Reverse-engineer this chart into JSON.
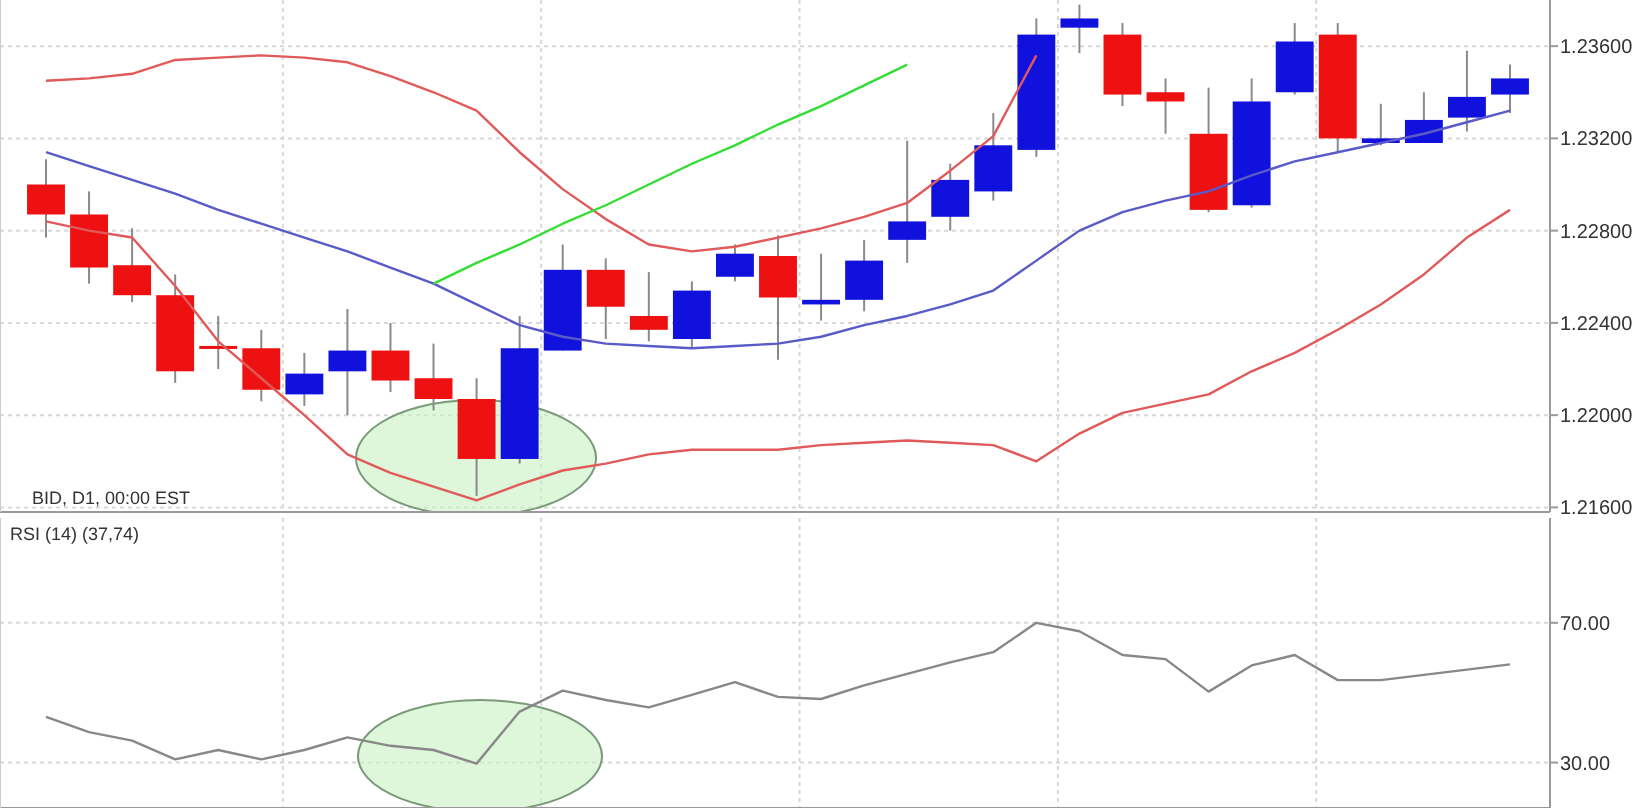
{
  "chart_data": [
    {
      "type": "candlestick",
      "annotations": [
        "BID, D1, 00:00 EST"
      ],
      "categories": [
        null,
        null,
        null,
        null,
        null,
        null,
        null,
        null,
        null,
        null,
        null,
        null,
        null,
        null,
        null,
        null,
        null,
        null,
        null,
        null,
        null,
        null,
        null,
        null,
        null,
        null,
        null,
        null,
        null,
        null,
        null,
        null,
        null,
        null,
        null
      ],
      "ohlc": [
        [
          1.23,
          1.2311,
          1.2277,
          1.2287
        ],
        [
          1.2287,
          1.2297,
          1.2257,
          1.2264
        ],
        [
          1.2265,
          1.2281,
          1.2249,
          1.2252
        ],
        [
          1.2252,
          1.2261,
          1.2214,
          1.2219
        ],
        [
          1.223,
          1.2243,
          1.222,
          1.2229
        ],
        [
          1.2229,
          1.2237,
          1.2206,
          1.2211
        ],
        [
          1.2209,
          1.2227,
          1.2204,
          1.2218
        ],
        [
          1.2219,
          1.2246,
          1.22,
          1.2228
        ],
        [
          1.2228,
          1.224,
          1.221,
          1.2215
        ],
        [
          1.2216,
          1.2231,
          1.2202,
          1.2207
        ],
        [
          1.2207,
          1.2216,
          1.2165,
          1.2181
        ],
        [
          1.2181,
          1.2243,
          1.2179,
          1.2229
        ],
        [
          1.2228,
          1.2274,
          1.2228,
          1.2263
        ],
        [
          1.2263,
          1.2268,
          1.2233,
          1.2247
        ],
        [
          1.2243,
          1.2262,
          1.2232,
          1.2237
        ],
        [
          1.2233,
          1.2258,
          1.2229,
          1.2254
        ],
        [
          1.226,
          1.2274,
          1.2258,
          1.227
        ],
        [
          1.2269,
          1.2278,
          1.2224,
          1.2251
        ],
        [
          1.2248,
          1.227,
          1.2241,
          1.225
        ],
        [
          1.225,
          1.2276,
          1.2245,
          1.2267
        ],
        [
          1.2276,
          1.2319,
          1.2266,
          1.2284
        ],
        [
          1.2286,
          1.2309,
          1.228,
          1.2302
        ],
        [
          1.2297,
          1.2331,
          1.2293,
          1.2317
        ],
        [
          1.2315,
          1.2372,
          1.2312,
          1.2365
        ],
        [
          1.2368,
          1.2378,
          1.2357,
          1.2372
        ],
        [
          1.2365,
          1.237,
          1.2334,
          1.2339
        ],
        [
          1.234,
          1.2346,
          1.2322,
          1.2336
        ],
        [
          1.2322,
          1.2342,
          1.2288,
          1.2289
        ],
        [
          1.2291,
          1.2346,
          1.229,
          1.2336
        ],
        [
          1.234,
          1.237,
          1.2339,
          1.2362
        ],
        [
          1.2365,
          1.237,
          1.2314,
          1.232
        ],
        [
          1.2318,
          1.2335,
          1.2317,
          1.232
        ],
        [
          1.2318,
          1.234,
          1.2318,
          1.2328
        ],
        [
          1.2329,
          1.2358,
          1.2323,
          1.2338
        ],
        [
          1.2339,
          1.2352,
          1.2331,
          1.2346
        ]
      ],
      "colors": [
        "#ee1111",
        "#ee1111",
        "#ee1111",
        "#ee1111",
        "#ee1111",
        "#ee1111",
        "#1111dd",
        "#1111dd",
        "#ee1111",
        "#ee1111",
        "#ee1111",
        "#1111dd",
        "#1111dd",
        "#ee1111",
        "#ee1111",
        "#1111dd",
        "#1111dd",
        "#ee1111",
        "#1111dd",
        "#1111dd",
        "#1111dd",
        "#1111dd",
        "#1111dd",
        "#1111dd",
        "#1111dd",
        "#ee1111",
        "#ee1111",
        "#ee1111",
        "#1111dd",
        "#1111dd",
        "#ee1111",
        "#1111dd",
        "#1111dd",
        "#1111dd",
        "#1111dd"
      ],
      "series": [
        {
          "type": "line",
          "color": "#e05a5a",
          "values": [
            1.2345,
            1.2346,
            1.2348,
            1.2354,
            1.2355,
            1.2356,
            1.2355,
            1.2353,
            1.2347,
            1.234,
            1.2332,
            1.2314,
            1.2298,
            1.2285,
            1.2274,
            1.2271,
            1.2273,
            1.2277,
            1.2281,
            1.2286,
            1.2292,
            1.2306,
            1.2321,
            1.2356,
            null,
            null,
            null,
            null,
            null,
            null,
            null,
            null,
            null,
            null,
            null
          ]
        },
        {
          "type": "line",
          "color": "#5a5ac8",
          "values": [
            1.2314,
            1.2308,
            1.2302,
            1.2296,
            1.2289,
            1.2283,
            1.2277,
            1.2271,
            1.2264,
            1.2257,
            1.2248,
            1.2239,
            1.2234,
            1.2231,
            1.223,
            1.2229,
            1.223,
            1.2231,
            1.2234,
            1.2239,
            1.2243,
            1.2248,
            1.2254,
            1.2267,
            1.228,
            1.2288,
            1.2293,
            1.2297,
            1.2304,
            1.231,
            1.2314,
            1.2318,
            1.2322,
            1.2327,
            1.2332
          ]
        },
        {
          "type": "line",
          "color": "#e05a5a",
          "values": [
            1.2284,
            1.228,
            1.2277,
            1.2256,
            1.2232,
            1.2216,
            1.22,
            1.2183,
            1.2175,
            1.2169,
            1.2163,
            1.217,
            1.2176,
            1.2179,
            1.2183,
            1.2185,
            1.2185,
            1.2185,
            1.2187,
            1.2188,
            1.2189,
            1.2188,
            1.2187,
            1.218,
            1.2192,
            1.2201,
            1.2205,
            1.2209,
            1.2219,
            1.2227,
            1.2237,
            1.2248,
            1.2261,
            1.2277,
            1.2289
          ]
        },
        {
          "type": "line",
          "color": "#33dd33",
          "values": [
            null,
            null,
            null,
            null,
            null,
            null,
            null,
            null,
            null,
            1.2257,
            1.2266,
            1.2274,
            1.2283,
            1.2291,
            1.23,
            1.2309,
            1.2317,
            1.2326,
            1.2334,
            1.2343,
            1.2352,
            null,
            null,
            null,
            null,
            null,
            null,
            null,
            null,
            null,
            null,
            null,
            null,
            null,
            null
          ]
        }
      ],
      "ylim": [
        1.2158,
        1.238
      ],
      "yticks": [
        {
          "value": 1.216,
          "label": "1.21600"
        },
        {
          "value": 1.22,
          "label": "1.22000"
        },
        {
          "value": 1.224,
          "label": "1.22400"
        },
        {
          "value": 1.228,
          "label": "1.22800"
        },
        {
          "value": 1.232,
          "label": "1.23200"
        },
        {
          "value": 1.236,
          "label": "1.23600"
        }
      ],
      "grid": true,
      "tick_labels": "y"
    },
    {
      "type": "line",
      "title": "RSI (14)  (37,74)",
      "color": "#888888",
      "categories": [
        null,
        null,
        null,
        null,
        null,
        null,
        null,
        null,
        null,
        null,
        null,
        null,
        null,
        null,
        null,
        null,
        null,
        null,
        null,
        null,
        null,
        null,
        null,
        null,
        null,
        null,
        null,
        null,
        null,
        null,
        null,
        null,
        null,
        null,
        null
      ],
      "values": [
        43.1,
        38.7,
        36.3,
        30.9,
        33.6,
        30.9,
        33.6,
        37.2,
        34.8,
        33.6,
        29.7,
        44.6,
        50.6,
        47.9,
        45.8,
        49.4,
        53.0,
        48.8,
        48.2,
        52.1,
        55.4,
        58.7,
        61.6,
        70.0,
        67.6,
        60.8,
        59.6,
        50.3,
        57.8,
        60.8,
        53.6,
        53.6,
        55.1,
        56.6,
        58.1
      ],
      "ylim": [
        17,
        100
      ],
      "yticks": [
        {
          "value": 30,
          "label": "30.00"
        },
        {
          "value": 70,
          "label": "70.00"
        }
      ],
      "grid": true,
      "tick_labels": "y"
    }
  ]
}
